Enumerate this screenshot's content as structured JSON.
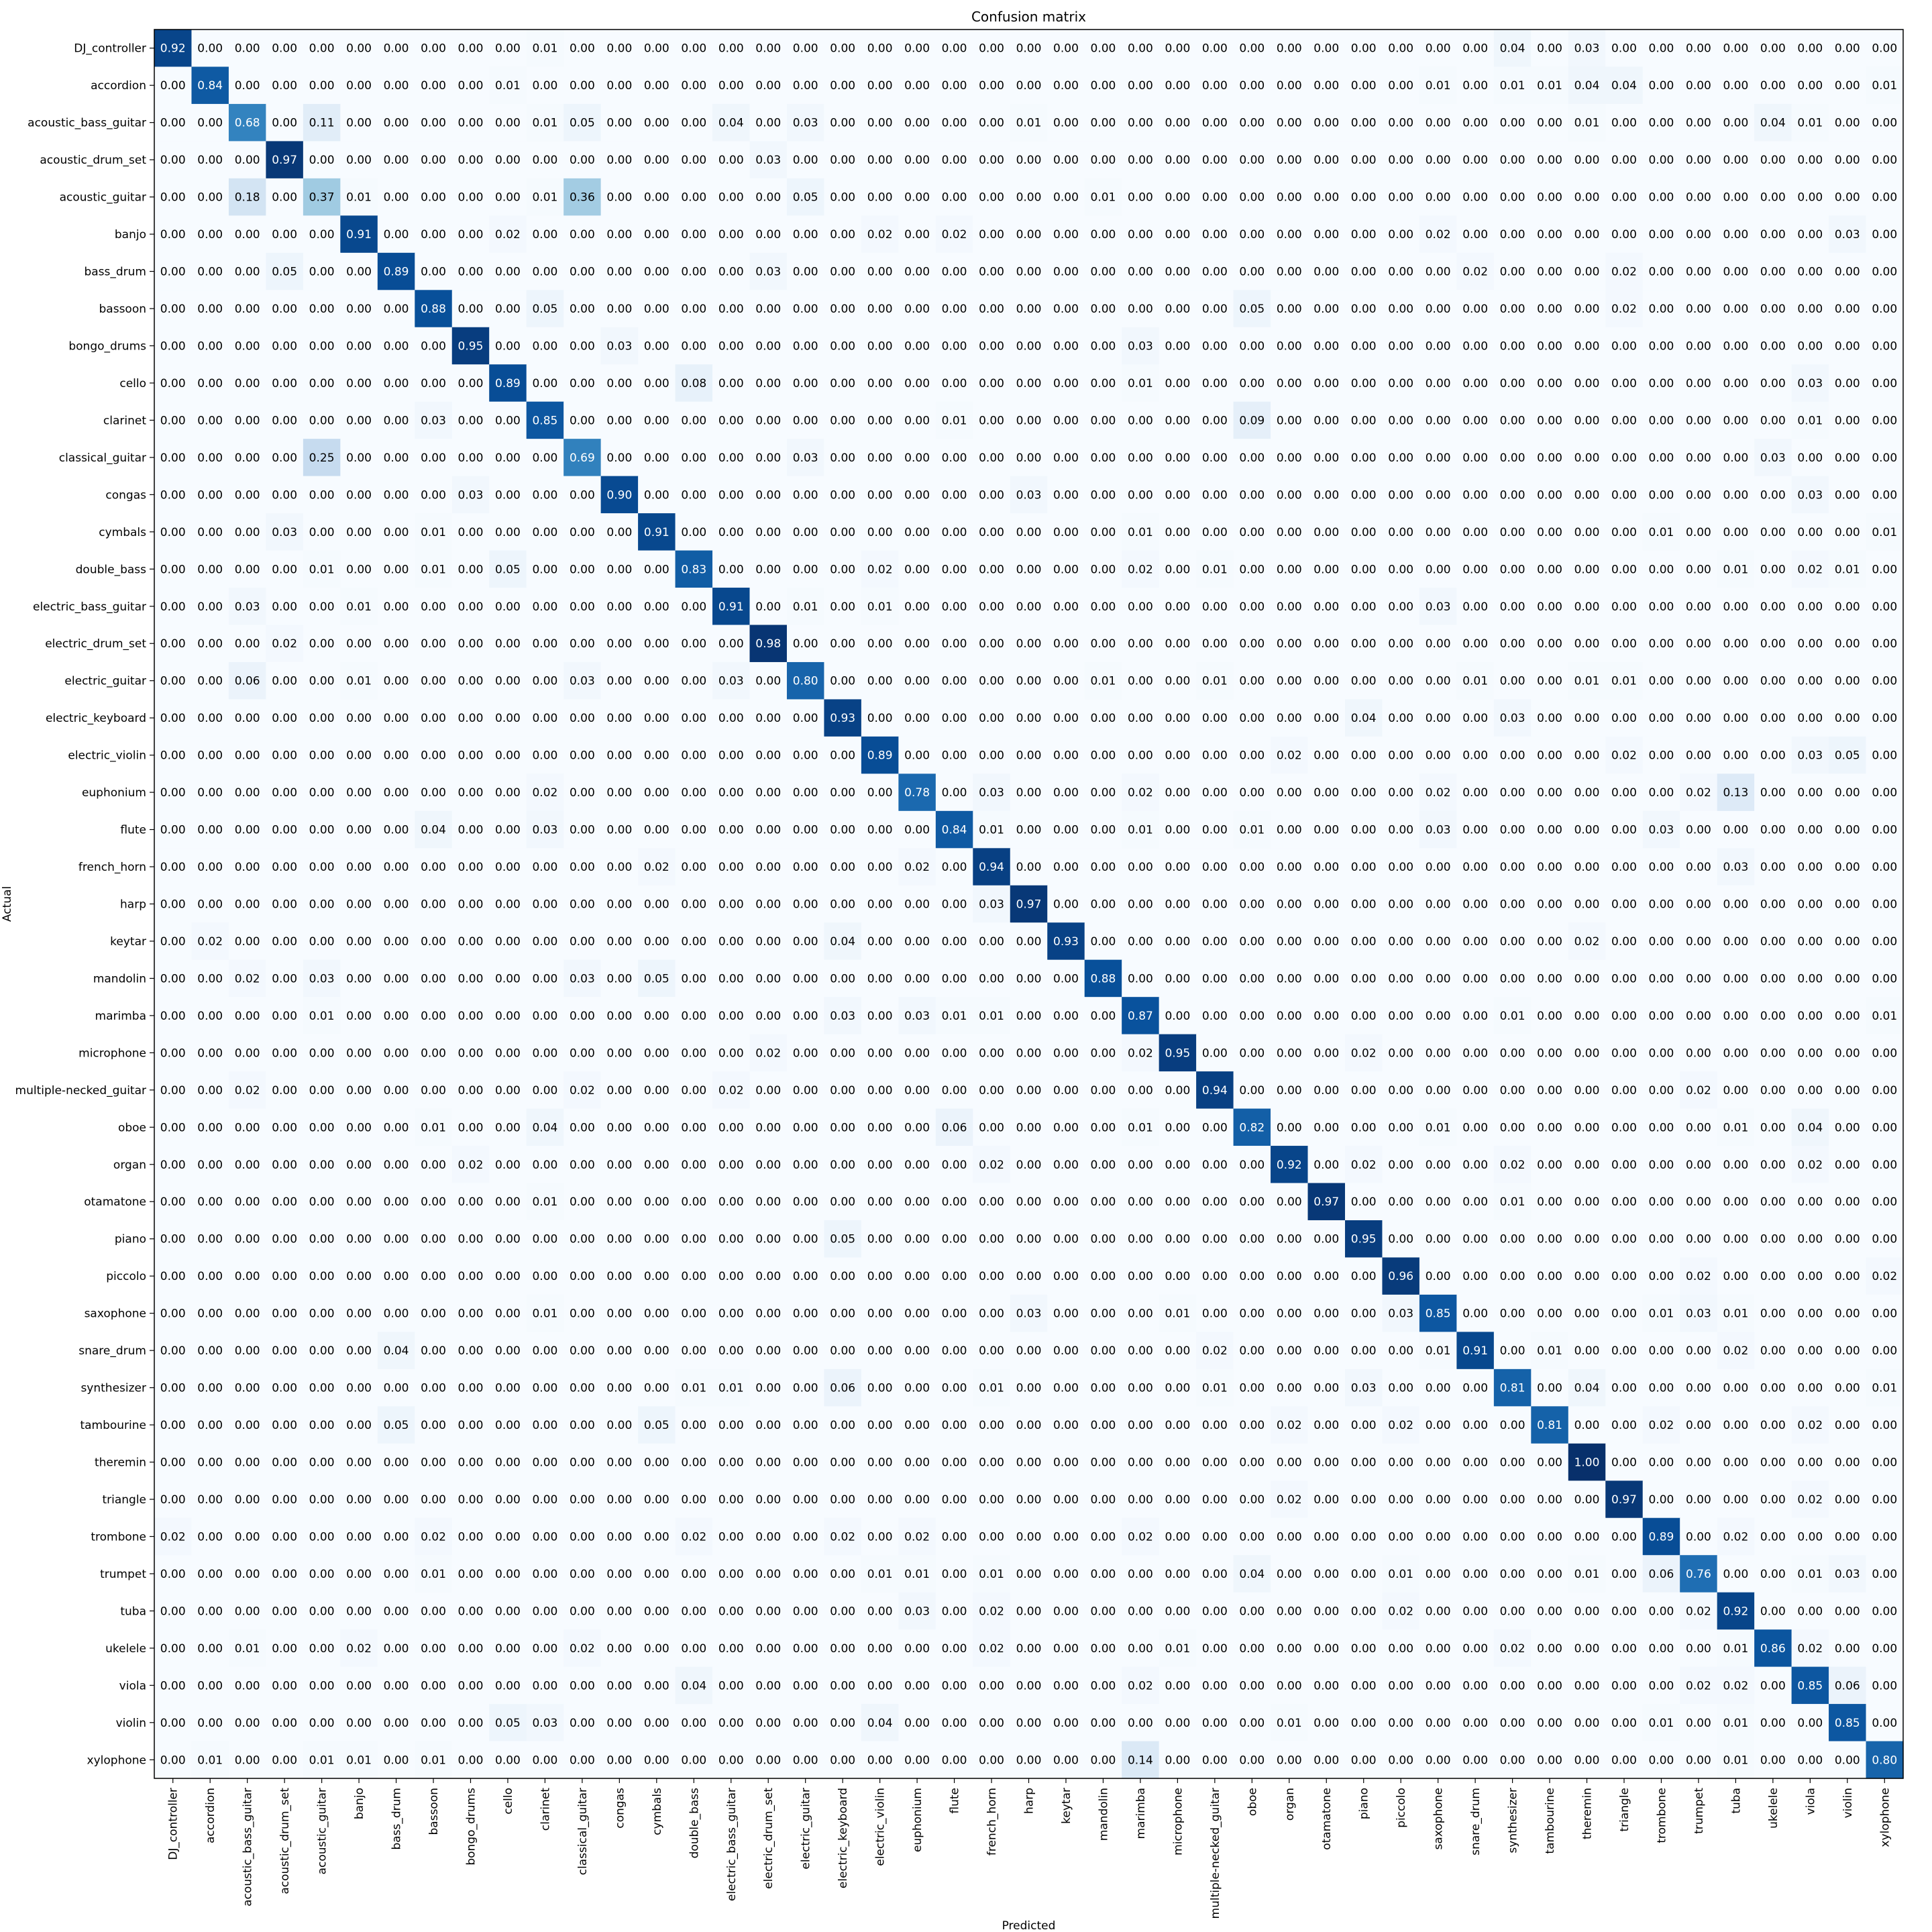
{
  "chart_data": {
    "type": "heatmap",
    "title": "Confusion matrix",
    "xlabel": "Predicted",
    "ylabel": "Actual",
    "colormap": "Blues",
    "colors": {
      "low": "#f7fbff",
      "high": "#08306b",
      "text_on_dark": "#ffffff",
      "text_on_light": "#000000"
    },
    "vmin": 0,
    "vmax": 1,
    "value_format": "0.00",
    "labels": [
      "DJ_controller",
      "accordion",
      "acoustic_bass_guitar",
      "acoustic_drum_set",
      "acoustic_guitar",
      "banjo",
      "bass_drum",
      "bassoon",
      "bongo_drums",
      "cello",
      "clarinet",
      "classical_guitar",
      "congas",
      "cymbals",
      "double_bass",
      "electric_bass_guitar",
      "electric_drum_set",
      "electric_guitar",
      "electric_keyboard",
      "electric_violin",
      "euphonium",
      "flute",
      "french_horn",
      "harp",
      "keytar",
      "mandolin",
      "marimba",
      "microphone",
      "multiple-necked_guitar",
      "oboe",
      "organ",
      "otamatone",
      "piano",
      "piccolo",
      "saxophone",
      "snare_drum",
      "synthesizer",
      "tambourine",
      "theremin",
      "triangle",
      "trombone",
      "trumpet",
      "tuba",
      "ukelele",
      "viola",
      "violin",
      "xylophone"
    ],
    "nonzero": [
      [
        [
          0,
          0.92
        ],
        [
          10,
          0.01
        ],
        [
          36,
          0.04
        ],
        [
          38,
          0.03
        ]
      ],
      [
        [
          1,
          0.84
        ],
        [
          9,
          0.01
        ],
        [
          34,
          0.01
        ],
        [
          36,
          0.01
        ],
        [
          37,
          0.01
        ],
        [
          38,
          0.04
        ],
        [
          39,
          0.04
        ],
        [
          46,
          0.01
        ]
      ],
      [
        [
          2,
          0.68
        ],
        [
          4,
          0.11
        ],
        [
          10,
          0.01
        ],
        [
          11,
          0.05
        ],
        [
          15,
          0.04
        ],
        [
          17,
          0.03
        ],
        [
          23,
          0.01
        ],
        [
          38,
          0.01
        ],
        [
          43,
          0.04
        ],
        [
          44,
          0.01
        ]
      ],
      [
        [
          3,
          0.97
        ],
        [
          16,
          0.03
        ]
      ],
      [
        [
          2,
          0.18
        ],
        [
          4,
          0.37
        ],
        [
          5,
          0.01
        ],
        [
          10,
          0.01
        ],
        [
          11,
          0.36
        ],
        [
          17,
          0.05
        ],
        [
          25,
          0.01
        ]
      ],
      [
        [
          5,
          0.91
        ],
        [
          9,
          0.02
        ],
        [
          19,
          0.02
        ],
        [
          21,
          0.02
        ],
        [
          34,
          0.02
        ],
        [
          45,
          0.03
        ]
      ],
      [
        [
          3,
          0.05
        ],
        [
          6,
          0.89
        ],
        [
          16,
          0.03
        ],
        [
          35,
          0.02
        ],
        [
          39,
          0.02
        ]
      ],
      [
        [
          7,
          0.88
        ],
        [
          10,
          0.05
        ],
        [
          29,
          0.05
        ],
        [
          39,
          0.02
        ]
      ],
      [
        [
          8,
          0.95
        ],
        [
          12,
          0.03
        ],
        [
          26,
          0.03
        ]
      ],
      [
        [
          9,
          0.89
        ],
        [
          14,
          0.08
        ],
        [
          26,
          0.01
        ],
        [
          44,
          0.03
        ]
      ],
      [
        [
          7,
          0.03
        ],
        [
          10,
          0.85
        ],
        [
          21,
          0.01
        ],
        [
          29,
          0.09
        ],
        [
          44,
          0.01
        ]
      ],
      [
        [
          4,
          0.25
        ],
        [
          11,
          0.69
        ],
        [
          17,
          0.03
        ],
        [
          43,
          0.03
        ]
      ],
      [
        [
          8,
          0.03
        ],
        [
          12,
          0.9
        ],
        [
          23,
          0.03
        ],
        [
          44,
          0.03
        ]
      ],
      [
        [
          3,
          0.03
        ],
        [
          7,
          0.01
        ],
        [
          13,
          0.91
        ],
        [
          26,
          0.01
        ],
        [
          40,
          0.01
        ],
        [
          46,
          0.01
        ]
      ],
      [
        [
          4,
          0.01
        ],
        [
          7,
          0.01
        ],
        [
          9,
          0.05
        ],
        [
          14,
          0.83
        ],
        [
          19,
          0.02
        ],
        [
          26,
          0.02
        ],
        [
          28,
          0.01
        ],
        [
          42,
          0.01
        ],
        [
          44,
          0.02
        ],
        [
          45,
          0.01
        ]
      ],
      [
        [
          2,
          0.03
        ],
        [
          5,
          0.01
        ],
        [
          15,
          0.91
        ],
        [
          17,
          0.01
        ],
        [
          19,
          0.01
        ],
        [
          34,
          0.03
        ]
      ],
      [
        [
          3,
          0.02
        ],
        [
          16,
          0.98
        ]
      ],
      [
        [
          2,
          0.06
        ],
        [
          5,
          0.01
        ],
        [
          11,
          0.03
        ],
        [
          15,
          0.03
        ],
        [
          17,
          0.8
        ],
        [
          25,
          0.01
        ],
        [
          28,
          0.01
        ],
        [
          35,
          0.01
        ],
        [
          38,
          0.01
        ],
        [
          39,
          0.01
        ]
      ],
      [
        [
          18,
          0.93
        ],
        [
          32,
          0.04
        ],
        [
          36,
          0.03
        ]
      ],
      [
        [
          19,
          0.89
        ],
        [
          30,
          0.02
        ],
        [
          39,
          0.02
        ],
        [
          44,
          0.03
        ],
        [
          45,
          0.05
        ]
      ],
      [
        [
          10,
          0.02
        ],
        [
          20,
          0.78
        ],
        [
          22,
          0.03
        ],
        [
          26,
          0.02
        ],
        [
          34,
          0.02
        ],
        [
          41,
          0.02
        ],
        [
          42,
          0.13
        ]
      ],
      [
        [
          7,
          0.04
        ],
        [
          10,
          0.03
        ],
        [
          21,
          0.84
        ],
        [
          22,
          0.01
        ],
        [
          26,
          0.01
        ],
        [
          29,
          0.01
        ],
        [
          34,
          0.03
        ],
        [
          40,
          0.03
        ]
      ],
      [
        [
          13,
          0.02
        ],
        [
          20,
          0.02
        ],
        [
          22,
          0.94
        ],
        [
          42,
          0.03
        ]
      ],
      [
        [
          22,
          0.03
        ],
        [
          23,
          0.97
        ]
      ],
      [
        [
          1,
          0.02
        ],
        [
          18,
          0.04
        ],
        [
          24,
          0.93
        ],
        [
          38,
          0.02
        ]
      ],
      [
        [
          2,
          0.02
        ],
        [
          4,
          0.03
        ],
        [
          11,
          0.03
        ],
        [
          13,
          0.05
        ],
        [
          25,
          0.88
        ]
      ],
      [
        [
          4,
          0.01
        ],
        [
          18,
          0.03
        ],
        [
          20,
          0.03
        ],
        [
          21,
          0.01
        ],
        [
          22,
          0.01
        ],
        [
          26,
          0.87
        ],
        [
          36,
          0.01
        ],
        [
          46,
          0.01
        ]
      ],
      [
        [
          16,
          0.02
        ],
        [
          26,
          0.02
        ],
        [
          27,
          0.95
        ],
        [
          32,
          0.02
        ]
      ],
      [
        [
          2,
          0.02
        ],
        [
          11,
          0.02
        ],
        [
          15,
          0.02
        ],
        [
          28,
          0.94
        ],
        [
          41,
          0.02
        ]
      ],
      [
        [
          7,
          0.01
        ],
        [
          10,
          0.04
        ],
        [
          21,
          0.06
        ],
        [
          26,
          0.01
        ],
        [
          29,
          0.82
        ],
        [
          34,
          0.01
        ],
        [
          42,
          0.01
        ],
        [
          44,
          0.04
        ]
      ],
      [
        [
          8,
          0.02
        ],
        [
          22,
          0.02
        ],
        [
          30,
          0.92
        ],
        [
          32,
          0.02
        ],
        [
          36,
          0.02
        ],
        [
          44,
          0.02
        ]
      ],
      [
        [
          10,
          0.01
        ],
        [
          31,
          0.97
        ],
        [
          36,
          0.01
        ]
      ],
      [
        [
          18,
          0.05
        ],
        [
          32,
          0.95
        ]
      ],
      [
        [
          33,
          0.96
        ],
        [
          41,
          0.02
        ],
        [
          46,
          0.02
        ]
      ],
      [
        [
          10,
          0.01
        ],
        [
          23,
          0.03
        ],
        [
          27,
          0.01
        ],
        [
          33,
          0.03
        ],
        [
          34,
          0.85
        ],
        [
          40,
          0.01
        ],
        [
          41,
          0.03
        ],
        [
          42,
          0.01
        ]
      ],
      [
        [
          6,
          0.04
        ],
        [
          28,
          0.02
        ],
        [
          34,
          0.01
        ],
        [
          35,
          0.91
        ],
        [
          37,
          0.01
        ],
        [
          42,
          0.02
        ]
      ],
      [
        [
          14,
          0.01
        ],
        [
          15,
          0.01
        ],
        [
          18,
          0.06
        ],
        [
          22,
          0.01
        ],
        [
          28,
          0.01
        ],
        [
          32,
          0.03
        ],
        [
          36,
          0.81
        ],
        [
          38,
          0.04
        ],
        [
          46,
          0.01
        ]
      ],
      [
        [
          6,
          0.05
        ],
        [
          13,
          0.05
        ],
        [
          30,
          0.02
        ],
        [
          33,
          0.02
        ],
        [
          37,
          0.81
        ],
        [
          40,
          0.02
        ],
        [
          44,
          0.02
        ]
      ],
      [
        [
          38,
          1.0
        ]
      ],
      [
        [
          30,
          0.02
        ],
        [
          39,
          0.97
        ],
        [
          44,
          0.02
        ]
      ],
      [
        [
          0,
          0.02
        ],
        [
          7,
          0.02
        ],
        [
          14,
          0.02
        ],
        [
          18,
          0.02
        ],
        [
          20,
          0.02
        ],
        [
          26,
          0.02
        ],
        [
          40,
          0.89
        ],
        [
          42,
          0.02
        ]
      ],
      [
        [
          7,
          0.01
        ],
        [
          19,
          0.01
        ],
        [
          20,
          0.01
        ],
        [
          22,
          0.01
        ],
        [
          29,
          0.04
        ],
        [
          33,
          0.01
        ],
        [
          38,
          0.01
        ],
        [
          40,
          0.06
        ],
        [
          41,
          0.76
        ],
        [
          44,
          0.01
        ],
        [
          45,
          0.03
        ]
      ],
      [
        [
          20,
          0.03
        ],
        [
          22,
          0.02
        ],
        [
          33,
          0.02
        ],
        [
          41,
          0.02
        ],
        [
          42,
          0.92
        ]
      ],
      [
        [
          2,
          0.01
        ],
        [
          5,
          0.02
        ],
        [
          11,
          0.02
        ],
        [
          22,
          0.02
        ],
        [
          27,
          0.01
        ],
        [
          36,
          0.02
        ],
        [
          42,
          0.01
        ],
        [
          43,
          0.86
        ],
        [
          44,
          0.02
        ]
      ],
      [
        [
          14,
          0.04
        ],
        [
          26,
          0.02
        ],
        [
          41,
          0.02
        ],
        [
          42,
          0.02
        ],
        [
          44,
          0.85
        ],
        [
          45,
          0.06
        ]
      ],
      [
        [
          9,
          0.05
        ],
        [
          10,
          0.03
        ],
        [
          19,
          0.04
        ],
        [
          30,
          0.01
        ],
        [
          40,
          0.01
        ],
        [
          42,
          0.01
        ],
        [
          45,
          0.85
        ]
      ],
      [
        [
          1,
          0.01
        ],
        [
          4,
          0.01
        ],
        [
          5,
          0.01
        ],
        [
          7,
          0.01
        ],
        [
          26,
          0.14
        ],
        [
          42,
          0.01
        ],
        [
          46,
          0.8
        ]
      ]
    ]
  }
}
